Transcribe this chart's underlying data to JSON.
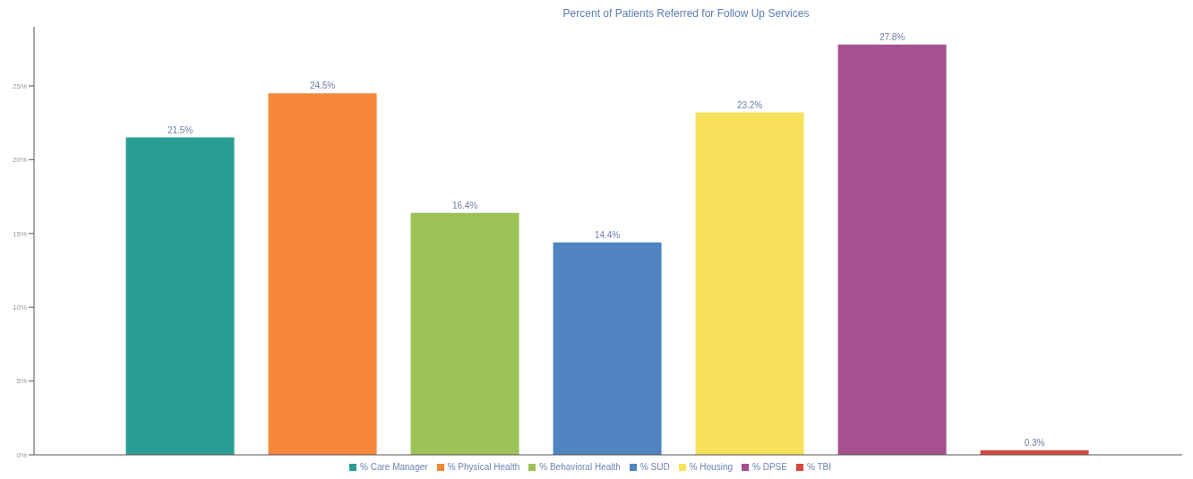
{
  "chart_data": {
    "type": "bar",
    "title": "Percent of Patients Referred for Follow Up Services",
    "categories": [
      null
    ],
    "series": [
      {
        "name": "% Care Manager",
        "color": "#2a9d95",
        "values": [
          21.5
        ],
        "value_labels": [
          "21.5%"
        ]
      },
      {
        "name": "% Physical Health",
        "color": "#f5863a",
        "values": [
          24.5
        ],
        "value_labels": [
          "24.5%"
        ]
      },
      {
        "name": "% Behavioral Health",
        "color": "#9cc257",
        "values": [
          16.4
        ],
        "value_labels": [
          "16.4%"
        ]
      },
      {
        "name": "% SUD",
        "color": "#4f84c0",
        "values": [
          14.4
        ],
        "value_labels": [
          "14.4%"
        ]
      },
      {
        "name": "% Housing",
        "color": "#f7e15a",
        "values": [
          23.2
        ],
        "value_labels": [
          "23.2%"
        ]
      },
      {
        "name": "% DPSE",
        "color": "#a5508f",
        "values": [
          27.8
        ],
        "value_labels": [
          "27.8%"
        ]
      },
      {
        "name": "% TBI",
        "color": "#d6483f",
        "values": [
          0.3
        ],
        "value_labels": [
          "0.3%"
        ]
      }
    ],
    "ylim": [
      0,
      29
    ],
    "yticks": [
      {
        "value": 0,
        "label": "0%"
      },
      {
        "value": 5,
        "label": "5%"
      },
      {
        "value": 10,
        "label": "10%"
      },
      {
        "value": 15,
        "label": "15%"
      },
      {
        "value": 20,
        "label": "20%"
      },
      {
        "value": 25,
        "label": "25%"
      }
    ],
    "grid": false,
    "legend": "bottom"
  }
}
